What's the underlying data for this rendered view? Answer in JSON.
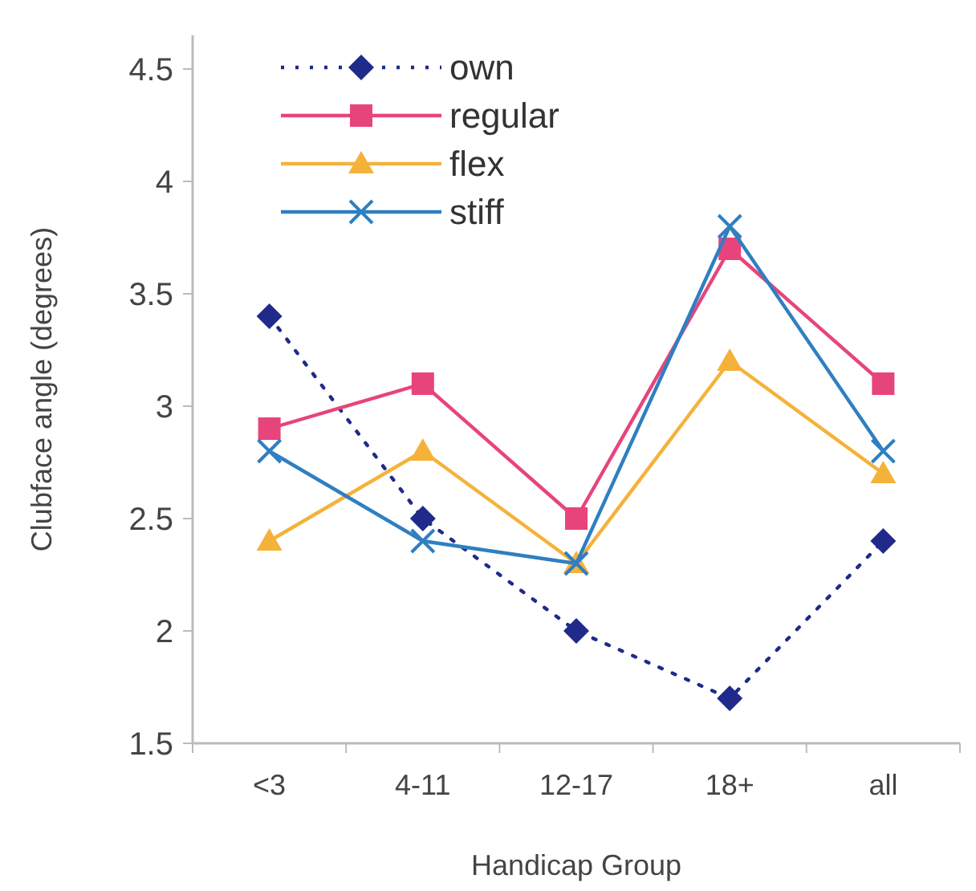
{
  "chart_data": {
    "type": "line",
    "xlabel": "Handicap Group",
    "ylabel": "Clubface angle (degrees)",
    "categories": [
      "<3",
      "4-11",
      "12-17",
      "18+",
      "all"
    ],
    "ylim": [
      1.5,
      4.65
    ],
    "yticks": [
      1.5,
      2,
      2.5,
      3,
      3.5,
      4,
      4.5
    ],
    "grid": false,
    "legend": "top left",
    "series": [
      {
        "name": "own",
        "color": "#1f2a8a",
        "marker": "diamond",
        "line_style": "dotted",
        "values": [
          3.4,
          2.5,
          2.0,
          1.7,
          2.4
        ]
      },
      {
        "name": "regular",
        "color": "#e8447c",
        "marker": "square",
        "line_style": "solid",
        "values": [
          2.9,
          3.1,
          2.5,
          3.7,
          3.1
        ]
      },
      {
        "name": "flex",
        "color": "#f5b23a",
        "marker": "triangle",
        "line_style": "solid",
        "values": [
          2.4,
          2.8,
          2.3,
          3.2,
          2.7
        ]
      },
      {
        "name": "stiff",
        "color": "#2f7fc1",
        "marker": "cross",
        "line_style": "solid",
        "values": [
          2.8,
          2.4,
          2.3,
          3.8,
          2.8
        ]
      }
    ]
  }
}
